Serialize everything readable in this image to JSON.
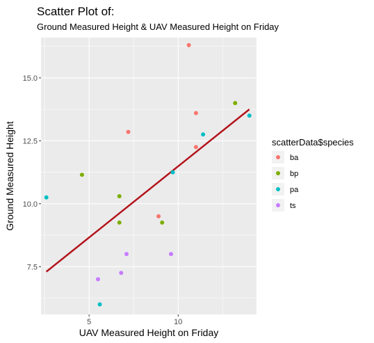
{
  "chart_data": {
    "type": "scatter",
    "title": "Scatter Plot of:",
    "subtitle": "Ground Measured Height & UAV Measured Height on Friday",
    "xlabel": "UAV Measured Height on Friday",
    "ylabel": "Ground Measured Height",
    "xlim": [
      2.3,
      14.4
    ],
    "ylim": [
      5.6,
      16.6
    ],
    "x_ticks": [
      5,
      10
    ],
    "y_ticks": [
      7.5,
      10.0,
      12.5,
      15.0
    ],
    "x_tick_labels": [
      "5",
      "10"
    ],
    "y_tick_labels": [
      "7.5",
      "10.0",
      "12.5",
      "15.0"
    ],
    "grid": true,
    "legend": {
      "title": "scatterData$species",
      "placement": "right"
    },
    "series": [
      {
        "name": "ba",
        "color": "#F8766D",
        "points": [
          {
            "x": 10.6,
            "y": 16.3
          },
          {
            "x": 11.0,
            "y": 13.6
          },
          {
            "x": 7.2,
            "y": 12.85
          },
          {
            "x": 11.0,
            "y": 12.25
          },
          {
            "x": 8.9,
            "y": 9.5
          }
        ]
      },
      {
        "name": "bp",
        "color": "#7CAE00",
        "points": [
          {
            "x": 13.2,
            "y": 14.0
          },
          {
            "x": 4.6,
            "y": 11.15
          },
          {
            "x": 6.7,
            "y": 10.3
          },
          {
            "x": 6.7,
            "y": 9.25
          },
          {
            "x": 9.1,
            "y": 9.25
          }
        ]
      },
      {
        "name": "pa",
        "color": "#00BFC4",
        "points": [
          {
            "x": 14.0,
            "y": 13.5
          },
          {
            "x": 11.4,
            "y": 12.75
          },
          {
            "x": 9.7,
            "y": 11.25
          },
          {
            "x": 2.6,
            "y": 10.25
          },
          {
            "x": 5.6,
            "y": 6.0
          }
        ]
      },
      {
        "name": "ts",
        "color": "#C77CFF",
        "points": [
          {
            "x": 7.1,
            "y": 8.0
          },
          {
            "x": 9.6,
            "y": 8.0
          },
          {
            "x": 6.8,
            "y": 7.25
          },
          {
            "x": 5.5,
            "y": 7.0
          }
        ]
      }
    ],
    "fit_line": {
      "color": "#B3131B",
      "x": [
        2.6,
        14.0
      ],
      "y": [
        7.3,
        13.75
      ]
    }
  }
}
